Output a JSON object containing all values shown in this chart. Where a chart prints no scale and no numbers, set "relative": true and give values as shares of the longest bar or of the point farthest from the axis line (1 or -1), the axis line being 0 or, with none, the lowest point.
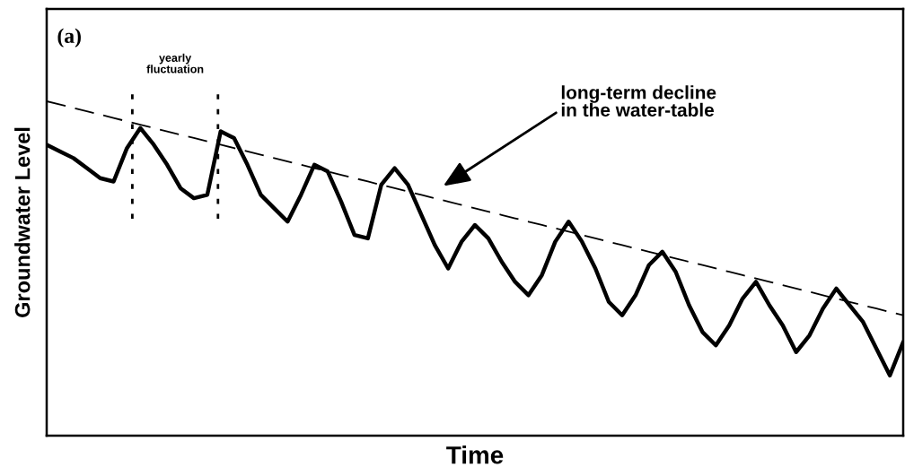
{
  "chart_data": {
    "type": "line",
    "relative": true,
    "xlabel": "Time",
    "ylabel": "Groundwater Level",
    "categories": [
      null,
      null,
      null,
      null,
      null,
      null,
      null,
      null,
      null,
      null,
      null,
      null,
      null,
      null,
      null,
      null,
      null,
      null,
      null,
      null,
      null,
      null,
      null,
      null,
      null,
      null,
      null,
      null,
      null,
      null,
      null,
      null,
      null,
      null,
      null,
      null,
      null,
      null,
      null,
      null,
      null,
      null,
      null,
      null,
      null,
      null,
      null,
      null,
      null,
      null,
      null,
      null,
      null,
      null,
      null,
      null,
      null,
      null,
      null,
      null,
      null,
      null,
      null,
      null,
      null
    ],
    "series": [
      {
        "color": "#000000",
        "line_style": "solid",
        "values": [
          0.87,
          0.85,
          0.83,
          0.8,
          0.77,
          0.76,
          0.86,
          0.92,
          0.87,
          0.81,
          0.74,
          0.71,
          0.72,
          0.91,
          0.89,
          0.81,
          0.72,
          0.68,
          0.64,
          0.72,
          0.81,
          0.79,
          0.7,
          0.6,
          0.59,
          0.75,
          0.8,
          0.75,
          0.66,
          0.57,
          0.5,
          0.58,
          0.63,
          0.59,
          0.52,
          0.46,
          0.42,
          0.48,
          0.58,
          0.64,
          0.58,
          0.5,
          0.4,
          0.36,
          0.42,
          0.51,
          0.55,
          0.49,
          0.39,
          0.31,
          0.27,
          0.33,
          0.41,
          0.46,
          0.39,
          0.33,
          0.25,
          0.3,
          0.38,
          0.44,
          0.39,
          0.34,
          0.26,
          0.18,
          0.28
        ]
      },
      {
        "color": "#000000",
        "line_style": "dashed",
        "values": [
          1.0,
          0.99,
          0.98,
          0.97,
          0.96,
          0.95,
          0.94,
          0.93,
          0.92,
          0.91,
          0.9,
          0.89,
          0.88,
          0.87,
          0.86,
          0.85,
          0.84,
          0.83,
          0.82,
          0.81,
          0.8,
          0.79,
          0.78,
          0.77,
          0.76,
          0.75,
          0.74,
          0.73,
          0.72,
          0.71,
          0.7,
          0.69,
          0.68,
          0.67,
          0.66,
          0.65,
          0.64,
          0.63,
          0.62,
          0.61,
          0.6,
          0.59,
          0.58,
          0.57,
          0.56,
          0.55,
          0.54,
          0.53,
          0.52,
          0.51,
          0.5,
          0.49,
          0.48,
          0.47,
          0.46,
          0.45,
          0.44,
          0.43,
          0.42,
          0.41,
          0.4,
          0.39,
          0.38,
          0.37,
          0.36
        ]
      }
    ],
    "annotations": [
      "(a)",
      "yearly fluctuation",
      "long-term decline\nin the water-table"
    ],
    "marker": "none",
    "grid": false
  }
}
